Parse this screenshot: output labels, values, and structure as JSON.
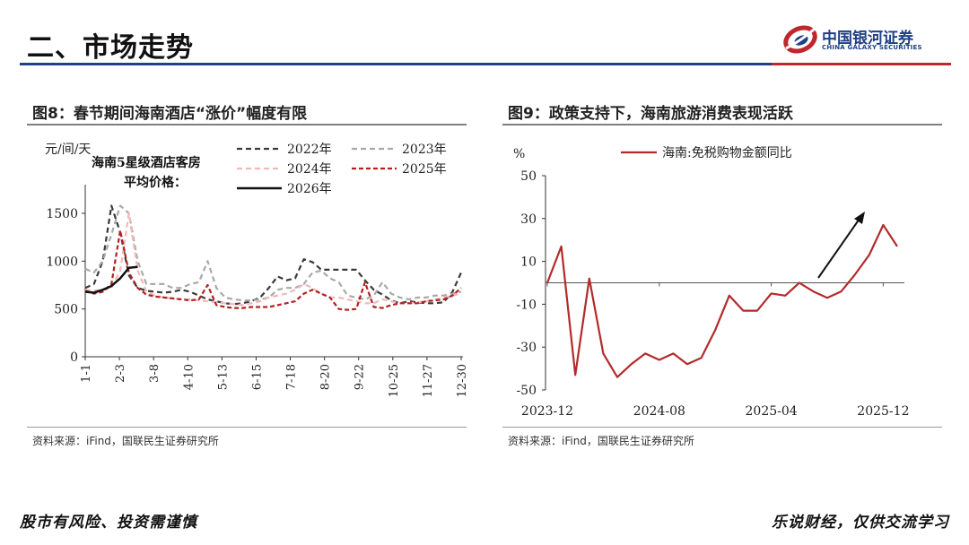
{
  "header": {
    "title": "二、市场走势",
    "logo_cn": "中国银河证券",
    "logo_en": "CHINA GALAXY SECURITIES"
  },
  "colors": {
    "blue": "#1f3f86",
    "red": "#c0262d"
  },
  "figures": [
    {
      "title": "图8：春节期间海南酒店“涨价”幅度有限",
      "source": "资料来源：iFind，国联民生证券研究所"
    },
    {
      "title": "图9：政策支持下，海南旅游消费表现活跃",
      "source": "资料来源：iFind，国联民生证券研究所"
    }
  ],
  "footer": {
    "left": "股市有风险、投资需谨慎",
    "right": "乐说财经，仅供交流学习"
  },
  "chart_data": [
    {
      "type": "line",
      "unit_label": "元/间/天",
      "annotation": [
        "海南5星级酒店客房",
        "平均价格："
      ],
      "x_ticks": [
        "1-1",
        "2-3",
        "3-8",
        "4-10",
        "5-13",
        "6-15",
        "7-18",
        "8-20",
        "9-22",
        "10-25",
        "11-27",
        "12-30"
      ],
      "ylim": [
        0,
        1800
      ],
      "y_ticks": [
        0,
        500,
        1000,
        1500
      ],
      "legend_placement": "top",
      "series": [
        {
          "name": "2022年",
          "color": "#3a3a3a",
          "dash": "6,4",
          "values": [
            720,
            760,
            1000,
            1580,
            1300,
            850,
            720,
            690,
            680,
            670,
            680,
            700,
            680,
            640,
            600,
            580,
            560,
            550,
            560,
            580,
            620,
            720,
            840,
            800,
            820,
            1020,
            990,
            910,
            910,
            910,
            910,
            910,
            800,
            700,
            650,
            590,
            560,
            580,
            570,
            560,
            560,
            570,
            680,
            880
          ]
        },
        {
          "name": "2023年",
          "color": "#a9a9a9",
          "dash": "6,4",
          "values": [
            920,
            880,
            1000,
            1280,
            1580,
            1500,
            1000,
            760,
            760,
            760,
            720,
            720,
            760,
            780,
            1000,
            720,
            620,
            600,
            590,
            590,
            600,
            620,
            700,
            720,
            720,
            760,
            880,
            900,
            820,
            780,
            640,
            620,
            600,
            640,
            780,
            660,
            620,
            600,
            620,
            620,
            640,
            640,
            660,
            680
          ]
        },
        {
          "name": "2024年",
          "color": "#f2b8b8",
          "dash": "6,4",
          "values": [
            700,
            690,
            700,
            720,
            900,
            1500,
            900,
            680,
            640,
            620,
            610,
            600,
            600,
            590,
            580,
            570,
            560,
            550,
            540,
            560,
            580,
            620,
            640,
            660,
            700,
            760,
            720,
            660,
            620,
            620,
            600,
            580,
            560,
            560,
            600,
            580,
            560,
            560,
            570,
            580,
            600,
            620,
            640,
            660
          ]
        },
        {
          "name": "2025年",
          "color": "#b42020",
          "dash": "5,3",
          "values": [
            690,
            660,
            680,
            760,
            1320,
            880,
            720,
            650,
            630,
            620,
            610,
            600,
            590,
            600,
            750,
            540,
            520,
            510,
            510,
            520,
            520,
            520,
            540,
            560,
            580,
            660,
            700,
            660,
            620,
            500,
            490,
            500,
            780,
            520,
            510,
            540,
            560,
            560,
            560,
            580,
            590,
            600,
            640,
            720
          ]
        },
        {
          "name": "2026年",
          "color": "#111111",
          "dash": "",
          "values": [
            680,
            670,
            700,
            740,
            820,
            930,
            940
          ]
        }
      ]
    },
    {
      "type": "line",
      "unit_label": "%",
      "ylim": [
        -50,
        50
      ],
      "y_ticks": [
        50,
        30,
        10,
        -10,
        -30,
        -50
      ],
      "x_ticks": [
        "2023-12",
        "2024-08",
        "2025-04",
        "2025-12"
      ],
      "baseline": 0,
      "legend_placement": "top",
      "series": [
        {
          "name": "海南:免税购物金额同比",
          "color": "#b42a2a",
          "values": [
            0,
            17,
            -43,
            2,
            -33,
            -44,
            -38,
            -33,
            -36,
            -33,
            -38,
            -35,
            -22,
            -6,
            -13,
            -13,
            -5,
            -6,
            0,
            -4,
            -7,
            -4,
            4,
            13,
            27,
            17
          ]
        }
      ]
    }
  ]
}
